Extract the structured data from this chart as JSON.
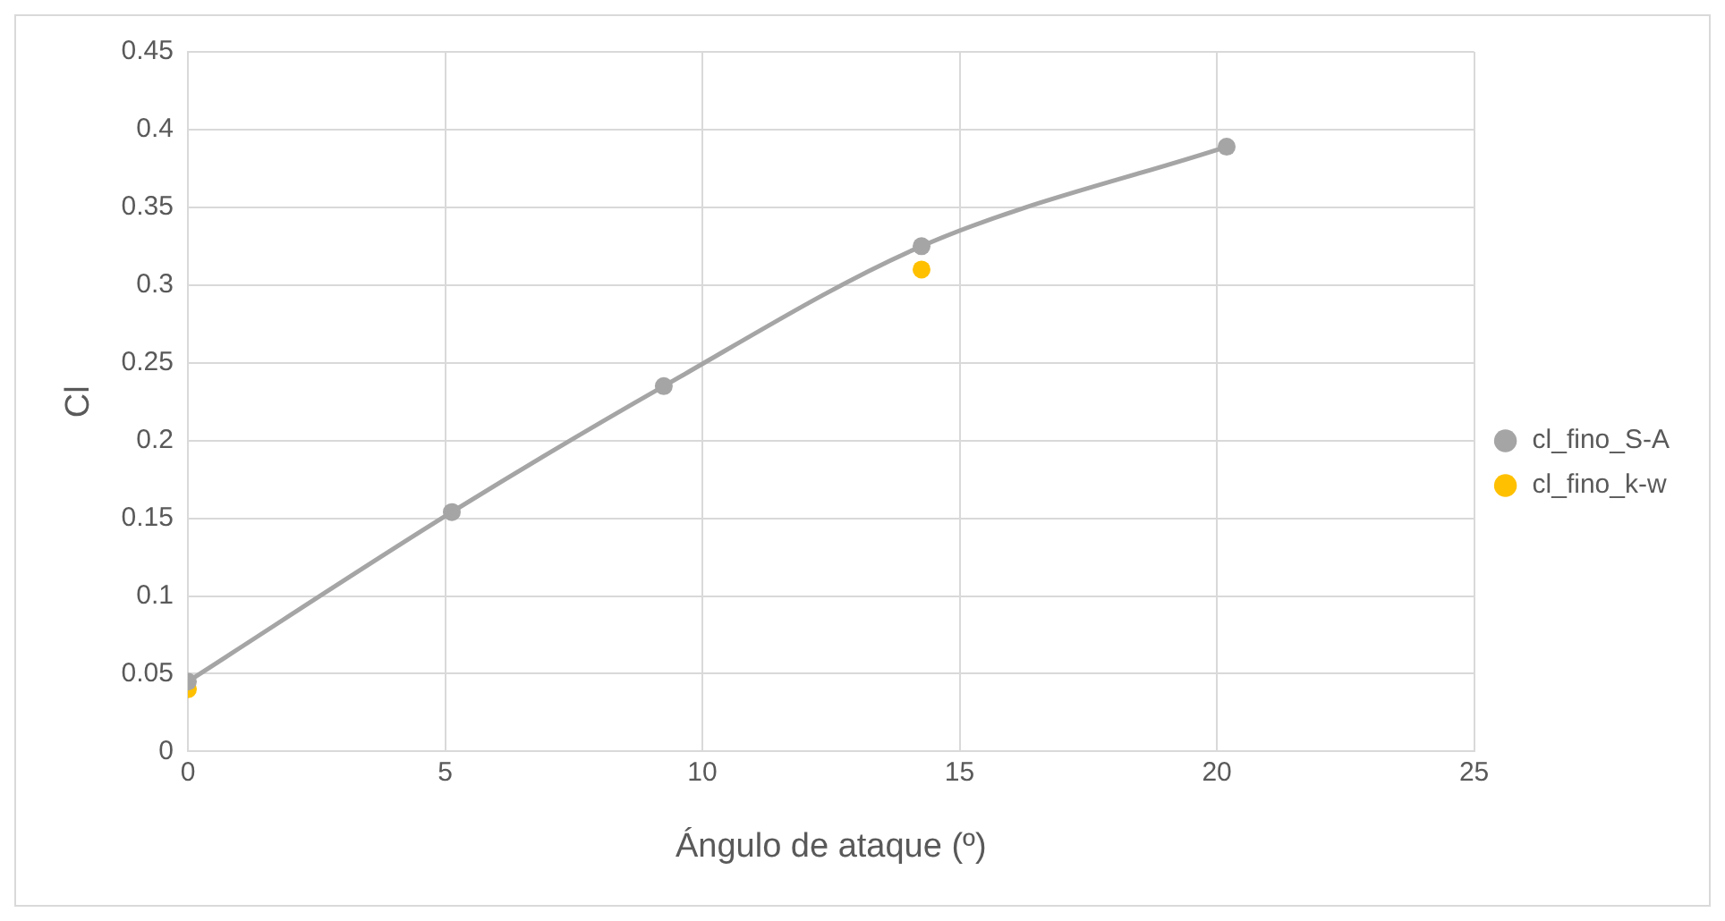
{
  "chart_data": {
    "type": "line",
    "xlabel": "Ángulo de ataque (º)",
    "ylabel": "Cl",
    "xlim": [
      0,
      25
    ],
    "xticks": [
      0,
      5,
      10,
      15,
      20,
      25
    ],
    "ylim": [
      0,
      0.45
    ],
    "yticks": [
      0,
      0.05,
      0.1,
      0.15,
      0.2,
      0.25,
      0.3,
      0.35,
      0.4,
      0.45
    ],
    "grid": true,
    "legend": "right",
    "marker": "circle",
    "series": [
      {
        "name": "cl_fino_S-A",
        "color": "#a5a5a5",
        "x": [
          0,
          5.13,
          9.25,
          14.26,
          20.19
        ],
        "values": [
          0.045,
          0.154,
          0.235,
          0.325,
          0.389
        ]
      },
      {
        "name": "cl_fino_k-w",
        "type": "scatter",
        "color": "#ffc000",
        "x": [
          0,
          14.26
        ],
        "values": [
          0.04,
          0.31
        ]
      }
    ]
  }
}
